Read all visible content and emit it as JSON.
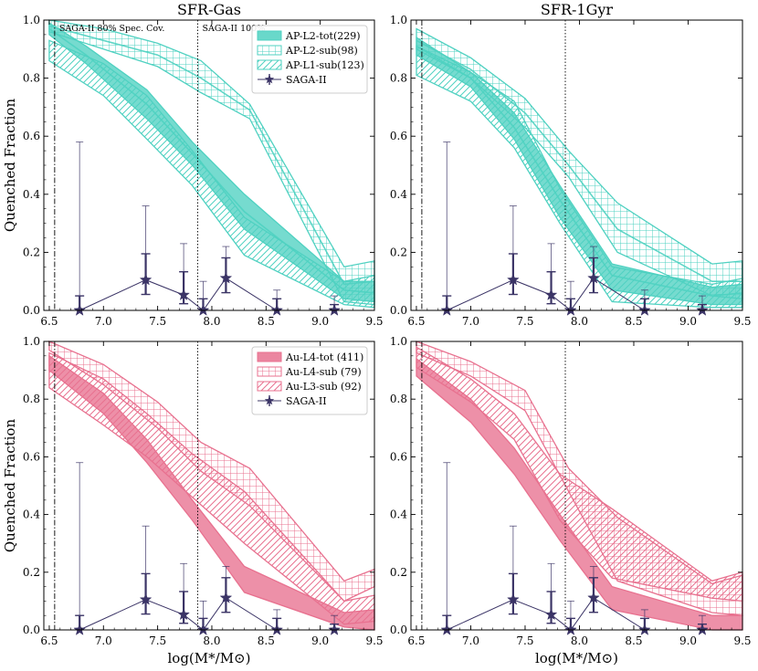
{
  "figure": {
    "ylabel": "Quenched Fraction",
    "xlabel": "log(M*/M⊙)"
  },
  "chart_data": [
    {
      "type": "area",
      "panel": "top-left",
      "title": "SFR-Gas",
      "xlim": [
        6.45,
        9.5
      ],
      "ylim": [
        0,
        1.0
      ],
      "xticks": [
        6.5,
        7.0,
        7.5,
        8.0,
        8.5,
        9.0,
        9.5
      ],
      "xtick_labels": [
        "6.5",
        "7.0",
        "7.5",
        "8.0",
        "8.5",
        "9.0",
        "9.5"
      ],
      "yticks": [
        0.0,
        0.2,
        0.4,
        0.6,
        0.8,
        1.0
      ],
      "ytick_labels": [
        "0.0",
        "0.2",
        "0.4",
        "0.6",
        "0.8",
        "1.0"
      ],
      "show_xlabel": false,
      "show_ylabel": true,
      "vlines": [
        {
          "x": 6.55,
          "style": "dashdot",
          "label": "SAGA-II 80% Spec. Cov."
        },
        {
          "x": 7.87,
          "style": "dotted",
          "label": "SAGA-II 100%"
        }
      ],
      "accent": "#4fd1c1",
      "series": [
        {
          "name": "AP-L2-tot(229)",
          "fill": "solid",
          "x": [
            6.5,
            6.84,
            7.4,
            7.82,
            8.3,
            9.22,
            9.5
          ],
          "lower": [
            0.95,
            0.85,
            0.66,
            0.5,
            0.28,
            0.04,
            0.03
          ],
          "upper": [
            0.99,
            0.91,
            0.76,
            0.58,
            0.4,
            0.1,
            0.1
          ],
          "mid": [
            0.97,
            0.88,
            0.71,
            0.54,
            0.34,
            0.07,
            0.06
          ]
        },
        {
          "name": "AP-L2-sub(98)",
          "fill": "grid",
          "x": [
            6.5,
            7.0,
            7.5,
            7.9,
            8.35,
            9.22,
            9.5
          ],
          "lower": [
            0.96,
            0.9,
            0.84,
            0.75,
            0.66,
            0.03,
            0.02
          ],
          "upper": [
            1.0,
            0.97,
            0.92,
            0.86,
            0.71,
            0.15,
            0.17
          ],
          "mid": [
            0.98,
            0.93,
            0.88,
            0.8,
            0.69,
            0.09,
            0.1
          ]
        },
        {
          "name": "AP-L1-sub(123)",
          "fill": "hatch",
          "x": [
            6.5,
            7.0,
            7.4,
            7.82,
            8.3,
            9.22,
            9.5
          ],
          "lower": [
            0.86,
            0.74,
            0.59,
            0.43,
            0.19,
            0.02,
            0.01
          ],
          "upper": [
            0.93,
            0.85,
            0.74,
            0.55,
            0.32,
            0.1,
            0.12
          ]
        }
      ],
      "saga": {
        "name": "SAGA-II",
        "x": [
          6.78,
          7.39,
          7.74,
          7.92,
          8.13,
          8.6,
          9.13
        ],
        "y": [
          0.0,
          0.105,
          0.053,
          0.0,
          0.111,
          0.0,
          0.0
        ],
        "err_low": [
          0.0,
          0.05,
          0.03,
          0.0,
          0.05,
          0.0,
          0.0
        ],
        "err_high": [
          0.05,
          0.09,
          0.08,
          0.04,
          0.07,
          0.04,
          0.02
        ],
        "outer_high": [
          0.58,
          0.36,
          0.23,
          0.1,
          0.22,
          0.07,
          0.05
        ],
        "color": "#3b3466"
      },
      "legend": {
        "position": "top-right"
      }
    },
    {
      "type": "area",
      "panel": "top-right",
      "title": "SFR-1Gyr",
      "xlim": [
        6.45,
        9.5
      ],
      "ylim": [
        0,
        1.0
      ],
      "xticks": [
        6.5,
        7.0,
        7.5,
        8.0,
        8.5,
        9.0,
        9.5
      ],
      "xtick_labels": [
        "6.5",
        "7.0",
        "7.5",
        "8.0",
        "8.5",
        "9.0",
        "9.5"
      ],
      "yticks": [
        0.0,
        0.2,
        0.4,
        0.6,
        0.8,
        1.0
      ],
      "ytick_labels": [
        "0.0",
        "0.2",
        "0.4",
        "0.6",
        "0.8",
        "1.0"
      ],
      "show_xlabel": false,
      "show_ylabel": false,
      "vlines": [
        {
          "x": 6.55,
          "style": "dashdot",
          "label": ""
        },
        {
          "x": 7.87,
          "style": "dotted",
          "label": ""
        }
      ],
      "accent": "#4fd1c1",
      "series": [
        {
          "name": "AP-L2-tot(229)",
          "fill": "solid",
          "x": [
            6.5,
            7.0,
            7.4,
            7.82,
            8.3,
            9.22,
            9.5
          ],
          "lower": [
            0.88,
            0.77,
            0.59,
            0.32,
            0.07,
            0.02,
            0.02
          ],
          "upper": [
            0.94,
            0.82,
            0.68,
            0.43,
            0.16,
            0.08,
            0.09
          ],
          "mid": [
            0.91,
            0.8,
            0.63,
            0.38,
            0.12,
            0.05,
            0.06
          ]
        },
        {
          "name": "AP-L2-sub(98)",
          "fill": "grid",
          "x": [
            6.5,
            7.0,
            7.5,
            7.9,
            8.35,
            9.22,
            9.5
          ],
          "lower": [
            0.9,
            0.8,
            0.63,
            0.46,
            0.2,
            0.05,
            0.04
          ],
          "upper": [
            0.97,
            0.87,
            0.73,
            0.55,
            0.37,
            0.16,
            0.17
          ],
          "mid": [
            0.93,
            0.83,
            0.68,
            0.5,
            0.28,
            0.1,
            0.1
          ]
        },
        {
          "name": "AP-L1-sub(123)",
          "fill": "hatch",
          "x": [
            6.5,
            7.0,
            7.4,
            7.82,
            8.3,
            9.22,
            9.5
          ],
          "lower": [
            0.81,
            0.72,
            0.56,
            0.3,
            0.03,
            0.01,
            0.01
          ],
          "upper": [
            0.91,
            0.82,
            0.72,
            0.42,
            0.15,
            0.09,
            0.11
          ]
        }
      ],
      "saga": {
        "name": "SAGA-II",
        "x": [
          6.78,
          7.39,
          7.74,
          7.92,
          8.13,
          8.6,
          9.13
        ],
        "y": [
          0.0,
          0.105,
          0.053,
          0.0,
          0.111,
          0.0,
          0.0
        ],
        "err_low": [
          0.0,
          0.05,
          0.03,
          0.0,
          0.05,
          0.0,
          0.0
        ],
        "err_high": [
          0.05,
          0.09,
          0.08,
          0.04,
          0.07,
          0.04,
          0.02
        ],
        "outer_high": [
          0.58,
          0.36,
          0.23,
          0.1,
          0.22,
          0.07,
          0.05
        ],
        "color": "#3b3466"
      },
      "legend": null
    },
    {
      "type": "area",
      "panel": "bottom-left",
      "title": "",
      "xlim": [
        6.45,
        9.5
      ],
      "ylim": [
        0,
        1.0
      ],
      "xticks": [
        6.5,
        7.0,
        7.5,
        8.0,
        8.5,
        9.0,
        9.5
      ],
      "xtick_labels": [
        "6.5",
        "7.0",
        "7.5",
        "8.0",
        "8.5",
        "9.0",
        "9.5"
      ],
      "yticks": [
        0.0,
        0.2,
        0.4,
        0.6,
        0.8,
        1.0
      ],
      "ytick_labels": [
        "0.0",
        "0.2",
        "0.4",
        "0.6",
        "0.8",
        "1.0"
      ],
      "show_xlabel": true,
      "show_ylabel": true,
      "vlines": [
        {
          "x": 6.55,
          "style": "dashdot",
          "label": ""
        },
        {
          "x": 7.87,
          "style": "dotted",
          "label": ""
        }
      ],
      "accent": "#e8718f",
      "series": [
        {
          "name": "Au-L4-tot (411)",
          "fill": "solid",
          "x": [
            6.5,
            7.0,
            7.4,
            7.82,
            8.3,
            9.22,
            9.5
          ],
          "lower": [
            0.9,
            0.75,
            0.58,
            0.38,
            0.13,
            0.01,
            0.0
          ],
          "upper": [
            0.95,
            0.82,
            0.66,
            0.45,
            0.22,
            0.06,
            0.07
          ]
        },
        {
          "name": "Au-L4-sub (79)",
          "fill": "grid",
          "x": [
            6.5,
            7.0,
            7.5,
            7.9,
            8.35,
            9.22,
            9.5
          ],
          "lower": [
            0.97,
            0.85,
            0.7,
            0.55,
            0.43,
            0.1,
            0.15
          ],
          "upper": [
            1.0,
            0.92,
            0.79,
            0.65,
            0.56,
            0.17,
            0.21
          ]
        },
        {
          "name": "Au-L3-sub (92)",
          "fill": "hatch",
          "x": [
            6.5,
            7.0,
            7.4,
            7.82,
            8.3,
            9.22,
            9.5
          ],
          "lower": [
            0.84,
            0.71,
            0.6,
            0.46,
            0.3,
            0.02,
            0.03
          ],
          "upper": [
            0.96,
            0.87,
            0.75,
            0.61,
            0.48,
            0.1,
            0.12
          ]
        }
      ],
      "saga": {
        "name": "SAGA-II",
        "x": [
          6.78,
          7.39,
          7.74,
          7.92,
          8.13,
          8.6,
          9.13
        ],
        "y": [
          0.0,
          0.105,
          0.053,
          0.0,
          0.111,
          0.0,
          0.0
        ],
        "err_low": [
          0.0,
          0.05,
          0.03,
          0.0,
          0.05,
          0.0,
          0.0
        ],
        "err_high": [
          0.05,
          0.09,
          0.08,
          0.04,
          0.07,
          0.04,
          0.02
        ],
        "outer_high": [
          0.58,
          0.36,
          0.23,
          0.1,
          0.22,
          0.07,
          0.05
        ],
        "color": "#3b3466"
      },
      "legend": {
        "position": "top-right"
      }
    },
    {
      "type": "area",
      "panel": "bottom-right",
      "title": "",
      "xlim": [
        6.45,
        9.5
      ],
      "ylim": [
        0,
        1.0
      ],
      "xticks": [
        6.5,
        7.0,
        7.5,
        8.0,
        8.5,
        9.0,
        9.5
      ],
      "xtick_labels": [
        "6.5",
        "7.0",
        "7.5",
        "8.0",
        "8.5",
        "9.0",
        "9.5"
      ],
      "yticks": [
        0.0,
        0.2,
        0.4,
        0.6,
        0.8,
        1.0
      ],
      "ytick_labels": [
        "0.0",
        "0.2",
        "0.4",
        "0.6",
        "0.8",
        "1.0"
      ],
      "show_xlabel": true,
      "show_ylabel": false,
      "vlines": [
        {
          "x": 6.55,
          "style": "dashdot",
          "label": ""
        },
        {
          "x": 7.87,
          "style": "dotted",
          "label": ""
        }
      ],
      "accent": "#e8718f",
      "series": [
        {
          "name": "Au-L4-tot (411)",
          "fill": "solid",
          "x": [
            6.5,
            7.0,
            7.4,
            7.82,
            8.3,
            9.22,
            9.5
          ],
          "lower": [
            0.88,
            0.72,
            0.54,
            0.31,
            0.07,
            0.0,
            0.0
          ],
          "upper": [
            0.94,
            0.8,
            0.63,
            0.4,
            0.15,
            0.05,
            0.05
          ]
        },
        {
          "name": "Au-L4-sub (79)",
          "fill": "grid",
          "x": [
            6.5,
            7.0,
            7.5,
            7.9,
            8.35,
            9.22,
            9.5
          ],
          "lower": [
            0.96,
            0.88,
            0.76,
            0.48,
            0.17,
            0.06,
            0.05
          ],
          "upper": [
            1.0,
            0.93,
            0.83,
            0.56,
            0.39,
            0.16,
            0.19
          ]
        },
        {
          "name": "Au-L3-sub (92)",
          "fill": "hatch",
          "x": [
            6.5,
            7.0,
            7.4,
            7.82,
            8.3,
            9.22,
            9.5
          ],
          "lower": [
            0.91,
            0.79,
            0.66,
            0.38,
            0.18,
            0.11,
            0.1
          ],
          "upper": [
            0.98,
            0.87,
            0.75,
            0.54,
            0.42,
            0.17,
            0.2
          ]
        }
      ],
      "saga": {
        "name": "SAGA-II",
        "x": [
          6.78,
          7.39,
          7.74,
          7.92,
          8.13,
          8.6,
          9.13
        ],
        "y": [
          0.0,
          0.105,
          0.053,
          0.0,
          0.111,
          0.0,
          0.0
        ],
        "err_low": [
          0.0,
          0.05,
          0.03,
          0.0,
          0.05,
          0.0,
          0.0
        ],
        "err_high": [
          0.05,
          0.09,
          0.08,
          0.04,
          0.07,
          0.04,
          0.02
        ],
        "outer_high": [
          0.58,
          0.36,
          0.23,
          0.1,
          0.22,
          0.07,
          0.05
        ],
        "color": "#3b3466"
      },
      "legend": null
    }
  ]
}
